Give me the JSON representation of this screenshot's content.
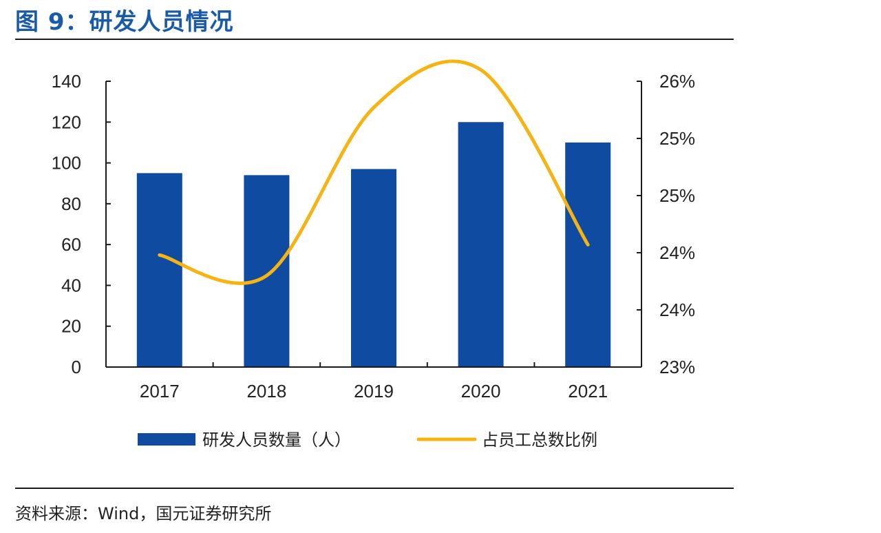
{
  "figure": {
    "title": "图 9：研发人员情况",
    "source": "资料来源：Wind，国元证券研究所"
  },
  "colors": {
    "title": "#1a5ba8",
    "bar": "#0e4ba1",
    "line": "#f5b314",
    "axis": "#1a1a1a",
    "text": "#222222"
  },
  "chart_data": {
    "type": "bar",
    "title": "",
    "xlabel": "",
    "ylabel": "",
    "categories": [
      "2017",
      "2018",
      "2019",
      "2020",
      "2021"
    ],
    "series": [
      {
        "name": "研发人员数量（人）",
        "type": "bar",
        "axis": "left",
        "color": "#0e4ba1",
        "values": [
          95,
          94,
          97,
          120,
          110
        ]
      },
      {
        "name": "占员工总数比例",
        "type": "line",
        "axis": "right",
        "color": "#f5b314",
        "smooth": true,
        "values": [
          0.2398,
          0.238,
          0.2527,
          0.256,
          0.2407
        ]
      }
    ],
    "y_left": {
      "ylim": [
        0,
        140
      ],
      "ticks": [
        0,
        20,
        40,
        60,
        80,
        100,
        120,
        140
      ],
      "tick_labels": [
        "0",
        "20",
        "40",
        "60",
        "80",
        "100",
        "120",
        "140"
      ]
    },
    "y_right": {
      "ylim": [
        0.23,
        0.255
      ],
      "ticks": [
        0.23,
        0.235,
        0.24,
        0.245,
        0.25,
        0.255
      ],
      "tick_labels": [
        "23%",
        "24%",
        "24%",
        "25%",
        "25%",
        "26%"
      ]
    },
    "grid": false,
    "legend": {
      "position": "bottom",
      "items": [
        {
          "label": "研发人员数量（人）",
          "symbol": "bar"
        },
        {
          "label": "占员工总数比例",
          "symbol": "line"
        }
      ]
    }
  }
}
